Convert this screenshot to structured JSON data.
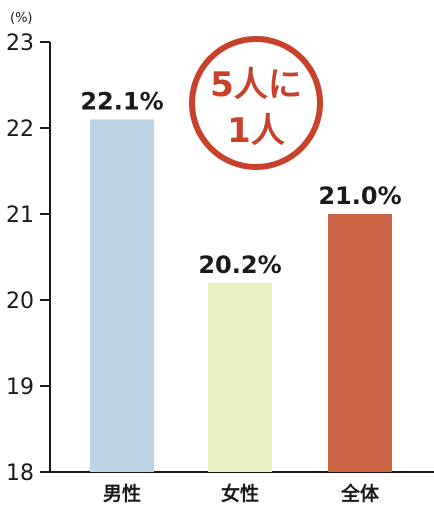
{
  "chart_data": {
    "type": "bar",
    "unit": "(%)",
    "categories": [
      "男性",
      "女性",
      "全体"
    ],
    "values": [
      22.1,
      20.2,
      21.0
    ],
    "data_labels": [
      "22.1%",
      "20.2%",
      "21.0%"
    ],
    "colors": [
      "#bcd3e6",
      "#e9eebe",
      "#cc6446"
    ],
    "ylim": [
      18,
      23
    ],
    "yticks": [
      18,
      19,
      20,
      21,
      22,
      23
    ],
    "grid": false,
    "legend": "none"
  },
  "callout": {
    "line1": "5人に",
    "line2": "1人",
    "color": "#c8412b"
  }
}
